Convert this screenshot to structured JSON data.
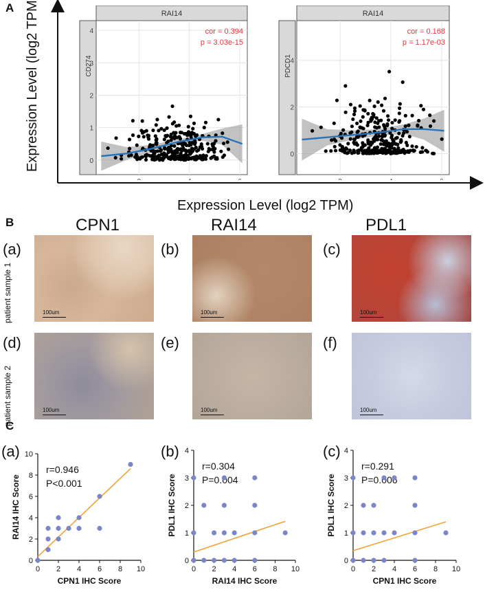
{
  "panelA": {
    "label": "A",
    "y_title": "Expression Level (log2 TPM)",
    "x_title": "Expression Level (log2 TPM)"
  },
  "panelB": {
    "label": "B",
    "columns": [
      "CPN1",
      "RAI14",
      "PDL1"
    ],
    "rows": [
      "patient sample 1",
      "patient sample 2"
    ],
    "sub_labels": [
      "(a)",
      "(b)",
      "(c)",
      "(d)",
      "(e)",
      "(f)"
    ],
    "scale_label": "100um"
  },
  "panelC": {
    "label": "C"
  },
  "colors": {
    "point_dark": "#000000",
    "fit_blue": "#2874b8",
    "ci_gray": "#999999",
    "strip_gray": "#d9d9d9",
    "ihc_point": "#7b86c9",
    "ihc_line": "#f5a033",
    "cor_red": "#e8323a"
  },
  "chart_data": [
    {
      "type": "scatter",
      "title": "RAI14",
      "ylabel": "CD274",
      "xlabel": "",
      "xlim": [
        0.3,
        6.3
      ],
      "ylim": [
        -0.45,
        4.3
      ],
      "xticks": [
        2,
        4,
        6
      ],
      "yticks": [
        0,
        1,
        2,
        3,
        4
      ],
      "annotation": [
        "cor = 0.394",
        "p = 3.03e-15"
      ],
      "trend": {
        "x": [
          0.5,
          1.5,
          2.5,
          3.5,
          4.5,
          5.3,
          6.1
        ],
        "y": [
          0.12,
          0.2,
          0.35,
          0.55,
          0.7,
          0.72,
          0.5
        ]
      },
      "ci_width": [
        0.45,
        0.2,
        0.12,
        0.08,
        0.1,
        0.25,
        0.6
      ]
    },
    {
      "type": "scatter",
      "title": "RAI14",
      "ylabel": "PDCD1",
      "xlabel": "",
      "xlim": [
        0.3,
        6.3
      ],
      "ylim": [
        -0.9,
        5.7
      ],
      "xticks": [
        2,
        4,
        6
      ],
      "yticks": [
        0,
        2,
        4
      ],
      "annotation": [
        "cor = 0.168",
        "p = 1.17e-03"
      ],
      "trend": {
        "x": [
          0.5,
          1.5,
          2.5,
          3.5,
          4.5,
          5.3,
          6.1
        ],
        "y": [
          0.6,
          0.7,
          0.8,
          0.9,
          1.05,
          1.05,
          0.98
        ]
      },
      "ci_width": [
        0.9,
        0.35,
        0.2,
        0.15,
        0.2,
        0.45,
        0.9
      ]
    },
    {
      "type": "scatter",
      "title": "(a)",
      "xlabel": "CPN1 IHC Score",
      "ylabel": "RAI14 IHC Score",
      "xlim": [
        0,
        10
      ],
      "ylim": [
        0,
        10
      ],
      "xticks": [
        0,
        2,
        4,
        6,
        8,
        10
      ],
      "yticks": [
        0,
        2,
        4,
        6,
        8,
        10
      ],
      "annotation": [
        "r=0.946",
        "P<0.001"
      ],
      "x": [
        0,
        1,
        1,
        1,
        2,
        2,
        2,
        3,
        4,
        4,
        6,
        6,
        9
      ],
      "y": [
        0,
        1,
        2,
        3,
        2,
        3,
        4,
        3,
        3,
        4,
        3,
        6,
        9
      ],
      "fit": {
        "x": [
          0,
          9
        ],
        "y": [
          0.35,
          8.6
        ]
      }
    },
    {
      "type": "scatter",
      "title": "(b)",
      "xlabel": "RAI14 IHC Score",
      "ylabel": "PDL1 IHC Score",
      "xlim": [
        0,
        10
      ],
      "ylim": [
        0,
        4
      ],
      "xticks": [
        0,
        2,
        4,
        6,
        8,
        10
      ],
      "yticks": [
        0,
        1,
        2,
        3,
        4
      ],
      "annotation": [
        "r=0.304",
        "P=0.004"
      ],
      "x": [
        0,
        0,
        0,
        1,
        1,
        2,
        2,
        3,
        3,
        3,
        3,
        4,
        4,
        6,
        6,
        6,
        6,
        9
      ],
      "y": [
        0,
        1,
        3,
        0,
        2,
        0,
        1,
        0,
        1,
        2,
        3,
        0,
        1,
        0,
        1,
        2,
        3,
        1
      ],
      "fit": {
        "x": [
          0,
          9
        ],
        "y": [
          0.3,
          1.42
        ]
      }
    },
    {
      "type": "scatter",
      "title": "(c)",
      "xlabel": "CPN1 IHC Score",
      "ylabel": "PDL1 IHC Score",
      "xlim": [
        0,
        10
      ],
      "ylim": [
        0,
        4
      ],
      "xticks": [
        0,
        2,
        4,
        6,
        8,
        10
      ],
      "yticks": [
        0,
        1,
        2,
        3,
        4
      ],
      "annotation": [
        "r=0.291",
        "P=0.006"
      ],
      "x": [
        0,
        0,
        0,
        1,
        1,
        1,
        2,
        2,
        2,
        3,
        3,
        3,
        4,
        4,
        6,
        6,
        6,
        6,
        9
      ],
      "y": [
        0,
        1,
        3,
        0,
        1,
        2,
        0,
        1,
        2,
        0,
        1,
        3,
        1,
        3,
        0,
        1,
        2,
        3,
        1
      ],
      "fit": {
        "x": [
          0,
          9
        ],
        "y": [
          0.35,
          1.4
        ]
      }
    }
  ]
}
